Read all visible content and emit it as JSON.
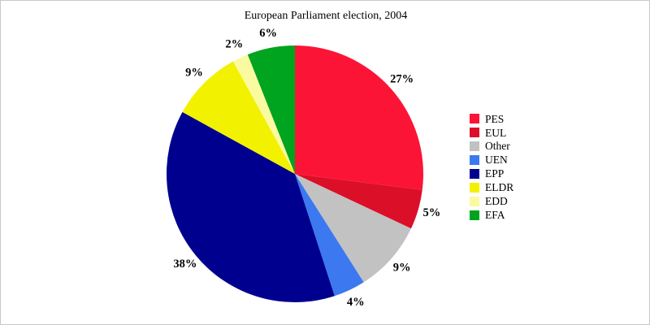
{
  "chart_data": {
    "type": "pie",
    "title": "European Parliament election, 2004",
    "direction": "clockwise",
    "start_angle_deg": 0,
    "legend_position": "right",
    "label_format": "percent",
    "background_color": "#ffffff",
    "border_color": "#c9c9c9",
    "slices": [
      {
        "label": "PES",
        "value": 27,
        "color": "#fc1437"
      },
      {
        "label": "EUL",
        "value": 5,
        "color": "#dc0f28"
      },
      {
        "label": "Other",
        "value": 9,
        "color": "#c2c2c2"
      },
      {
        "label": "UEN",
        "value": 4,
        "color": "#3c78f0"
      },
      {
        "label": "EPP",
        "value": 38,
        "color": "#00008f"
      },
      {
        "label": "ELDR",
        "value": 9,
        "color": "#f2f200"
      },
      {
        "label": "EDD",
        "value": 2,
        "color": "#fafaa0"
      },
      {
        "label": "EFA",
        "value": 6,
        "color": "#00a41e"
      }
    ],
    "labels": [
      "27%",
      "5%",
      "9%",
      "4%",
      "38%",
      "9%",
      "2%",
      "6%"
    ],
    "legend_entries": [
      "PES",
      "EUL",
      "Other",
      "UEN",
      "EPP",
      "ELDR",
      "EDD",
      "EFA"
    ]
  }
}
